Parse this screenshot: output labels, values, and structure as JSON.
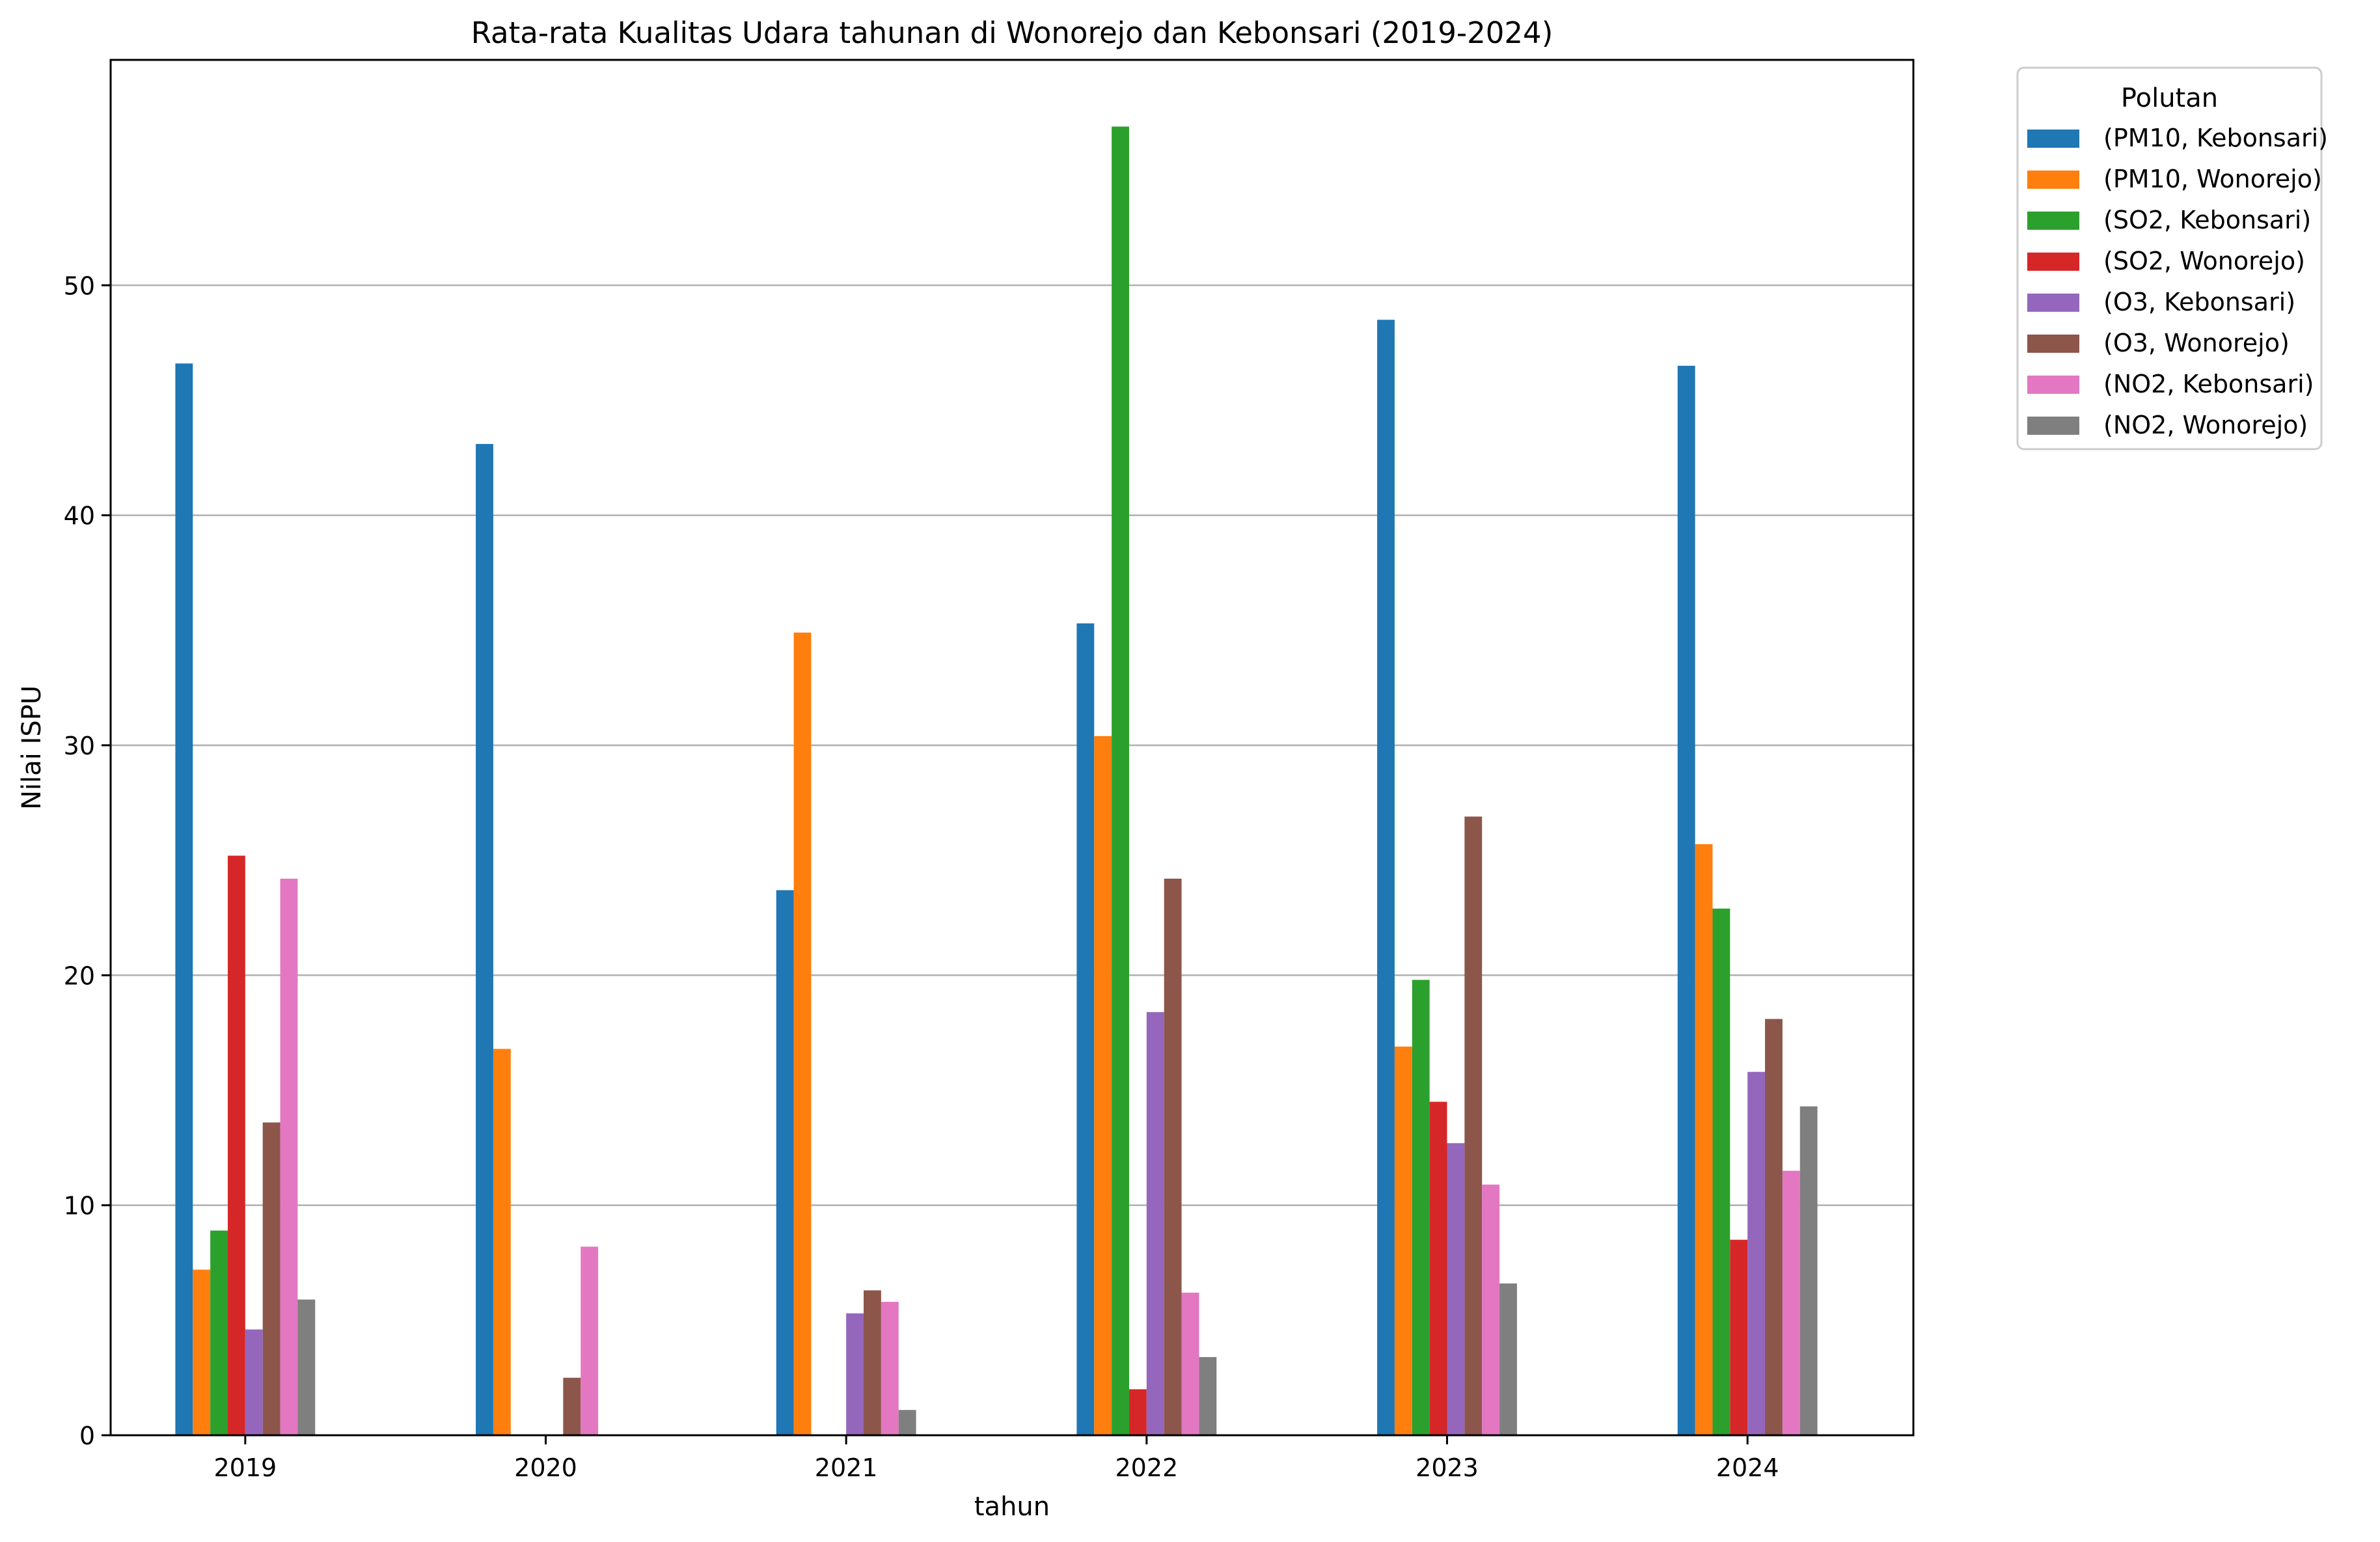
{
  "chart_data": {
    "type": "bar",
    "title": "Rata-rata Kualitas Udara tahunan di Wonorejo dan Kebonsari (2019-2024)",
    "xlabel": "tahun",
    "ylabel": "Nilai ISPU",
    "categories": [
      "2019",
      "2020",
      "2021",
      "2022",
      "2023",
      "2024"
    ],
    "ylim": [
      0,
      59.8
    ],
    "yticks": [
      0,
      10,
      20,
      30,
      40,
      50
    ],
    "grid": "horizontal",
    "legend": {
      "title": "Polutan",
      "placement": "outside-top-right"
    },
    "series": [
      {
        "name": "(PM10, Kebonsari)",
        "color": "#1f77b4",
        "values": [
          46.6,
          43.1,
          23.7,
          35.3,
          48.5,
          46.5
        ]
      },
      {
        "name": "(PM10, Wonorejo)",
        "color": "#ff7f0e",
        "values": [
          7.2,
          16.8,
          34.9,
          30.4,
          16.9,
          25.7
        ]
      },
      {
        "name": "(SO2, Kebonsari)",
        "color": "#2ca02c",
        "values": [
          8.9,
          0,
          0,
          56.9,
          19.8,
          22.9
        ]
      },
      {
        "name": "(SO2, Wonorejo)",
        "color": "#d62728",
        "values": [
          25.2,
          0,
          0,
          2.0,
          14.5,
          8.5
        ]
      },
      {
        "name": "(O3, Kebonsari)",
        "color": "#9467bd",
        "values": [
          4.6,
          0,
          5.3,
          18.4,
          12.7,
          15.8
        ]
      },
      {
        "name": "(O3, Wonorejo)",
        "color": "#8c564b",
        "values": [
          13.6,
          2.5,
          6.3,
          24.2,
          26.9,
          18.1
        ]
      },
      {
        "name": "(NO2, Kebonsari)",
        "color": "#e377c2",
        "values": [
          24.2,
          8.2,
          5.8,
          6.2,
          10.9,
          11.5
        ]
      },
      {
        "name": "(NO2, Wonorejo)",
        "color": "#7f7f7f",
        "values": [
          5.9,
          0,
          1.1,
          3.4,
          6.6,
          14.3
        ]
      }
    ]
  }
}
